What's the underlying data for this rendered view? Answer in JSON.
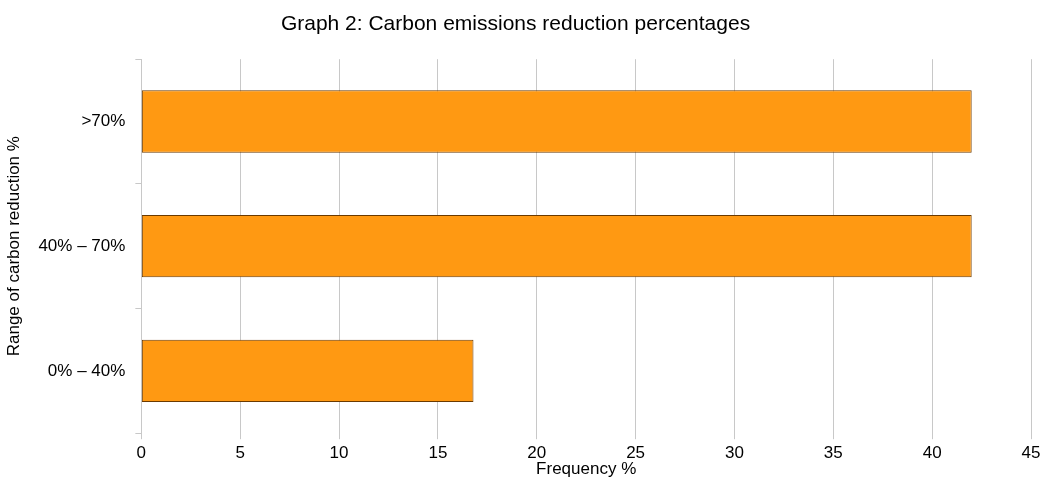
{
  "chart_data": {
    "type": "bar",
    "orientation": "horizontal",
    "title": "Graph 2: Carbon emissions reduction percentages",
    "xlabel": "Frequency %",
    "ylabel": "Range of carbon reduction %",
    "categories": [
      ">70%",
      "40% – 70%",
      "0% – 40%"
    ],
    "values": [
      42,
      42,
      16.8
    ],
    "color": "#ff9912",
    "xlim": [
      0,
      45
    ],
    "xticks": [
      0,
      5,
      10,
      15,
      20,
      25,
      30,
      35,
      40,
      45
    ],
    "grid": "x",
    "legend": false
  }
}
